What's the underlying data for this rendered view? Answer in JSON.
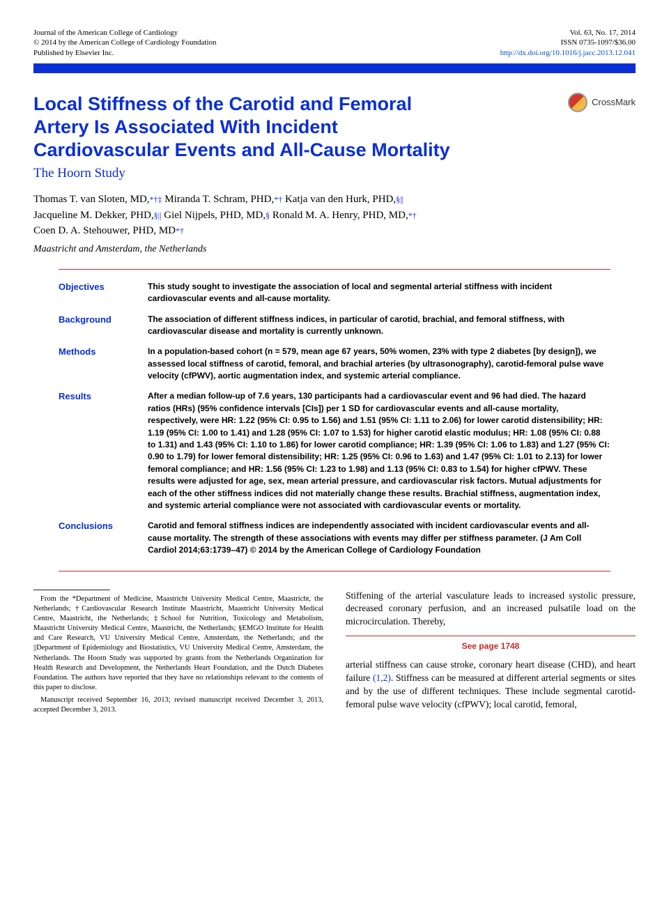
{
  "header": {
    "left_line1": "Journal of the American College of Cardiology",
    "left_line2": "© 2014 by the American College of Cardiology Foundation",
    "left_line3": "Published by Elsevier Inc.",
    "right_line1": "Vol. 63, No. 17, 2014",
    "right_line2": "ISSN 0735-1097/$36.00",
    "doi": "http://dx.doi.org/10.1016/j.jacc.2013.12.041"
  },
  "title": "Local Stiffness of the Carotid and Femoral Artery Is Associated With Incident Cardiovascular Events and All-Cause Mortality",
  "subtitle": "The Hoorn Study",
  "crossmark_label": "CrossMark",
  "authors": {
    "a1_name": "Thomas T. van Sloten, ",
    "a1_deg": "MD,",
    "a1_marks": "*†‡",
    "a2_name": " Miranda T. Schram, ",
    "a2_deg": "PHD,",
    "a2_marks": "*†",
    "a3_name": " Katja van den Hurk, ",
    "a3_deg": "PHD,",
    "a3_marks": "§||",
    "a4_name": "Jacqueline M. Dekker, ",
    "a4_deg": "PHD,",
    "a4_marks": "§||",
    "a5_name": " Giel Nijpels, ",
    "a5_deg": "PHD, MD,",
    "a5_marks": "§",
    "a6_name": " Ronald M. A. Henry, ",
    "a6_deg": "PHD, MD,",
    "a6_marks": "*†",
    "a7_name": "Coen D. A. Stehouwer, ",
    "a7_deg": "PHD, MD",
    "a7_marks": "*†"
  },
  "affil_location": "Maastricht and Amsterdam, the Netherlands",
  "abstract": {
    "objectives_label": "Objectives",
    "objectives_text": "This study sought to investigate the association of local and segmental arterial stiffness with incident cardiovascular events and all-cause mortality.",
    "background_label": "Background",
    "background_text": "The association of different stiffness indices, in particular of carotid, brachial, and femoral stiffness, with cardiovascular disease and mortality is currently unknown.",
    "methods_label": "Methods",
    "methods_text": "In a population-based cohort (n = 579, mean age 67 years, 50% women, 23% with type 2 diabetes [by design]), we assessed local stiffness of carotid, femoral, and brachial arteries (by ultrasonography), carotid-femoral pulse wave velocity (cfPWV), aortic augmentation index, and systemic arterial compliance.",
    "results_label": "Results",
    "results_text": "After a median follow-up of 7.6 years, 130 participants had a cardiovascular event and 96 had died. The hazard ratios (HRs) (95% confidence intervals [CIs]) per 1 SD for cardiovascular events and all-cause mortality, respectively, were HR: 1.22 (95% CI: 0.95 to 1.56) and 1.51 (95% CI: 1.11 to 2.06) for lower carotid distensibility; HR: 1.19 (95% CI: 1.00 to 1.41) and 1.28 (95% CI: 1.07 to 1.53) for higher carotid elastic modulus; HR: 1.08 (95% CI: 0.88 to 1.31) and 1.43 (95% CI: 1.10 to 1.86) for lower carotid compliance; HR: 1.39 (95% CI: 1.06 to 1.83) and 1.27 (95% CI: 0.90 to 1.79) for lower femoral distensibility; HR: 1.25 (95% CI: 0.96 to 1.63) and 1.47 (95% CI: 1.01 to 2.13) for lower femoral compliance; and HR: 1.56 (95% CI: 1.23 to 1.98) and 1.13 (95% CI: 0.83 to 1.54) for higher cfPWV. These results were adjusted for age, sex, mean arterial pressure, and cardiovascular risk factors. Mutual adjustments for each of the other stiffness indices did not materially change these results. Brachial stiffness, augmentation index, and systemic arterial compliance were not associated with cardiovascular events or mortality.",
    "conclusions_label": "Conclusions",
    "conclusions_text": "Carotid and femoral stiffness indices are independently associated with incident cardiovascular events and all-cause mortality. The strength of these associations with events may differ per stiffness parameter.   (J Am Coll Cardiol 2014;63:1739–47) © 2014 by the American College of Cardiology Foundation"
  },
  "footnote": {
    "p1": "From the *Department of Medicine, Maastricht University Medical Centre, Maastricht, the Netherlands; †Cardiovascular Research Institute Maastricht, Maastricht University Medical Centre, Maastricht, the Netherlands; ‡School for Nutrition, Toxicology and Metabolism, Maastricht University Medical Centre, Maastricht, the Netherlands; §EMGO Institute for Health and Care Research, VU University Medical Centre, Amsterdam, the Netherlands; and the ||Department of Epidemiology and Biostatistics, VU University Medical Centre, Amsterdam, the Netherlands. The Hoorn Study was supported by grants from the Netherlands Organization for Health Research and Development, the Netherlands Heart Foundation, and the Dutch Diabetes Foundation. The authors have reported that they have no relationships relevant to the contents of this paper to disclose.",
    "p2": "Manuscript received September 16, 2013; revised manuscript received December 3, 2013, accepted December 3, 2013."
  },
  "body": {
    "para1": "Stiffening of the arterial vasculature leads to increased systolic pressure, decreased coronary perfusion, and an increased pulsatile load on the microcirculation. Thereby,",
    "see_page": "See page 1748",
    "para2_a": "arterial stiffness can cause stroke, coronary heart disease (CHD), and heart failure ",
    "ref12": "(1,2)",
    "para2_b": ". Stiffness can be measured at different arterial segments or sites and by the use of different techniques. These include segmental carotid-femoral pulse wave velocity (cfPWV); local carotid, femoral,"
  },
  "colors": {
    "primary_blue": "#0a2fd6",
    "rule_red": "#c62828",
    "link_blue": "#0050c8"
  }
}
